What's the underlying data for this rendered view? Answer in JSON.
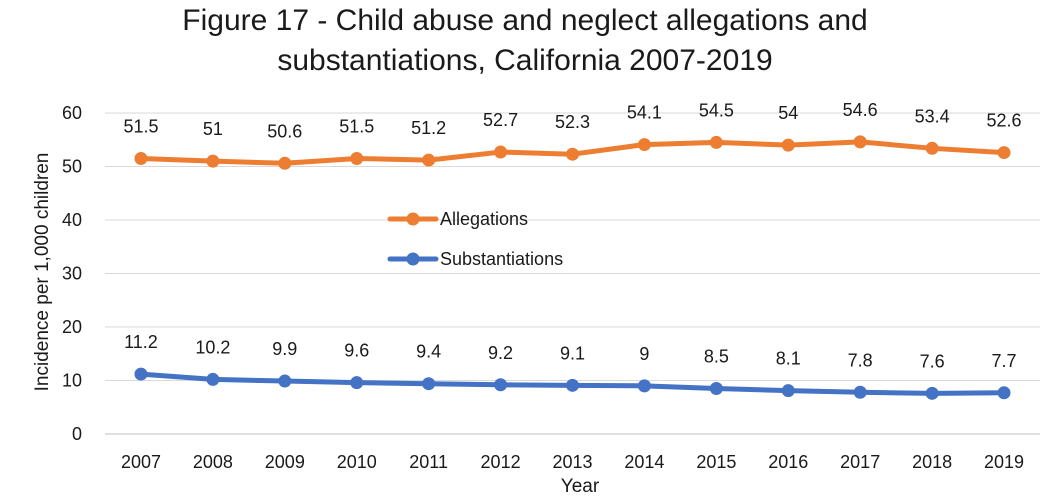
{
  "chart_data": {
    "type": "line",
    "title_lines": [
      "Figure 17 - Child abuse and neglect allegations and",
      "substantiations, California 2007-2019"
    ],
    "xlabel": "Year",
    "ylabel": "Incidence per 1,000 children",
    "categories": [
      "2007",
      "2008",
      "2009",
      "2010",
      "2011",
      "2012",
      "2013",
      "2014",
      "2015",
      "2016",
      "2017",
      "2018",
      "2019"
    ],
    "ylim": [
      0,
      60
    ],
    "yticks": [
      0,
      10,
      20,
      30,
      40,
      50,
      60
    ],
    "grid": "horizontal",
    "legend": "center",
    "series": [
      {
        "name": "Allegations",
        "color": "#ED7D31",
        "values": [
          51.5,
          51,
          50.6,
          51.5,
          51.2,
          52.7,
          52.3,
          54.1,
          54.5,
          54,
          54.6,
          53.4,
          52.6
        ],
        "labels": [
          "51.5",
          "51",
          "50.6",
          "51.5",
          "51.2",
          "52.7",
          "52.3",
          "54.1",
          "54.5",
          "54",
          "54.6",
          "53.4",
          "52.6"
        ]
      },
      {
        "name": "Substantiations",
        "color": "#4472C4",
        "values": [
          11.2,
          10.2,
          9.9,
          9.6,
          9.4,
          9.2,
          9.1,
          9,
          8.5,
          8.1,
          7.8,
          7.6,
          7.7
        ],
        "labels": [
          "11.2",
          "10.2",
          "9.9",
          "9.6",
          "9.4",
          "9.2",
          "9.1",
          "9",
          "8.5",
          "8.1",
          "7.8",
          "7.6",
          "7.7"
        ]
      }
    ]
  }
}
